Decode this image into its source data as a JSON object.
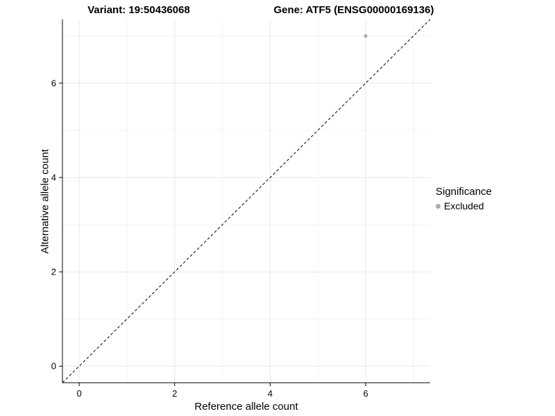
{
  "titles": {
    "variant": "Variant: 19:50436068",
    "gene": "Gene: ATF5 (ENSG00000169136)"
  },
  "axes": {
    "x_label": "Reference allele count",
    "y_label": "Alternative allele count"
  },
  "legend": {
    "title": "Significance",
    "items": [
      {
        "label": "Excluded",
        "color": "#aaaaaa"
      }
    ]
  },
  "colors": {
    "grid_major": "#e8e8e8",
    "grid_minor": "#f4f4f4",
    "axis_line": "#000000",
    "tick_label": "#000000",
    "reference_line": "#000000",
    "point": "#aaaaaa"
  },
  "chart_data": {
    "type": "scatter",
    "title": "Variant: 19:50436068  /  Gene: ATF5 (ENSG00000169136)",
    "xlabel": "Reference allele count",
    "ylabel": "Alternative allele count",
    "xlim": [
      -0.35,
      7.35
    ],
    "ylim": [
      -0.35,
      7.35
    ],
    "x_ticks": [
      0,
      2,
      4,
      6
    ],
    "y_ticks": [
      0,
      2,
      4,
      6
    ],
    "minor_ticks": [
      1,
      3,
      5,
      7
    ],
    "grid": true,
    "legend_position": "right",
    "legend_title": "Significance",
    "reference_line": {
      "type": "identity y=x",
      "style": "dashed",
      "color": "#000000"
    },
    "series": [
      {
        "name": "Excluded",
        "color": "#aaaaaa",
        "points": [
          {
            "x": 6,
            "y": 7
          }
        ]
      }
    ]
  }
}
